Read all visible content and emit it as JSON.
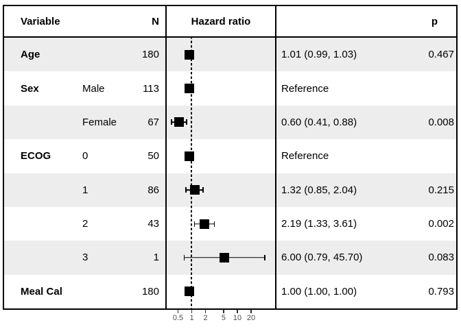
{
  "header": {
    "variable": "Variable",
    "n": "N",
    "hazard_ratio": "Hazard ratio",
    "p": "p"
  },
  "rows": [
    {
      "variable": "Age",
      "level": "",
      "n": "180",
      "estimate": "1.01 (0.99, 1.03)",
      "p": "0.467",
      "hr": 1.01,
      "lo": null,
      "hi": null,
      "shaded": true
    },
    {
      "variable": "Sex",
      "level": "Male",
      "n": "113",
      "estimate": "Reference",
      "p": "",
      "hr": 1.0,
      "lo": null,
      "hi": null,
      "shaded": false
    },
    {
      "variable": "",
      "level": "Female",
      "n": "67",
      "estimate": "0.60 (0.41, 0.88)",
      "p": "0.008",
      "hr": 0.6,
      "lo": 0.41,
      "hi": 0.88,
      "shaded": true
    },
    {
      "variable": "ECOG",
      "level": "0",
      "n": "50",
      "estimate": "Reference",
      "p": "",
      "hr": 1.0,
      "lo": null,
      "hi": null,
      "shaded": false
    },
    {
      "variable": "",
      "level": "1",
      "n": "86",
      "estimate": "1.32 (0.85, 2.04)",
      "p": "0.215",
      "hr": 1.32,
      "lo": 0.85,
      "hi": 2.04,
      "shaded": true
    },
    {
      "variable": "",
      "level": "2",
      "n": "43",
      "estimate": "2.19 (1.33, 3.61)",
      "p": "0.002",
      "hr": 2.19,
      "lo": 1.33,
      "hi": 3.61,
      "shaded": false
    },
    {
      "variable": "",
      "level": "3",
      "n": "1",
      "estimate": "6.00 (0.79, 45.70)",
      "p": "0.083",
      "hr": 6.0,
      "lo": 0.79,
      "hi": 45.7,
      "shaded": true
    },
    {
      "variable": "Meal Cal",
      "level": "",
      "n": "180",
      "estimate": "1.00 (1.00, 1.00)",
      "p": "0.793",
      "hr": 1.0,
      "lo": null,
      "hi": null,
      "shaded": false
    }
  ],
  "axis": {
    "scale": "log",
    "ticks": [
      0.5,
      1,
      2,
      5,
      10,
      20
    ],
    "tick_labels": [
      "0.5",
      "1",
      "2",
      "5",
      "10",
      "20"
    ],
    "reference": 1
  },
  "colors": {
    "band": "#ededed",
    "marker": "#000000",
    "border": "#000000",
    "axis_label": "#4d4d4d"
  },
  "chart_data": {
    "type": "scatter",
    "variant": "forest-plot",
    "title": "Hazard ratio",
    "x_scale": "log",
    "x_ticks": [
      0.5,
      1,
      2,
      5,
      10,
      20
    ],
    "x_range": [
      0.41,
      45.7
    ],
    "reference_line": 1,
    "legend": "none",
    "series": [
      {
        "variable": "Age",
        "level": null,
        "n": 180,
        "hr": 1.01,
        "ci_low": 0.99,
        "ci_high": 1.03,
        "p": 0.467,
        "reference": false
      },
      {
        "variable": "Sex",
        "level": "Male",
        "n": 113,
        "hr": 1.0,
        "ci_low": null,
        "ci_high": null,
        "p": null,
        "reference": true
      },
      {
        "variable": "Sex",
        "level": "Female",
        "n": 67,
        "hr": 0.6,
        "ci_low": 0.41,
        "ci_high": 0.88,
        "p": 0.008,
        "reference": false
      },
      {
        "variable": "ECOG",
        "level": "0",
        "n": 50,
        "hr": 1.0,
        "ci_low": null,
        "ci_high": null,
        "p": null,
        "reference": true
      },
      {
        "variable": "ECOG",
        "level": "1",
        "n": 86,
        "hr": 1.32,
        "ci_low": 0.85,
        "ci_high": 2.04,
        "p": 0.215,
        "reference": false
      },
      {
        "variable": "ECOG",
        "level": "2",
        "n": 43,
        "hr": 2.19,
        "ci_low": 1.33,
        "ci_high": 3.61,
        "p": 0.002,
        "reference": false
      },
      {
        "variable": "ECOG",
        "level": "3",
        "n": 1,
        "hr": 6.0,
        "ci_low": 0.79,
        "ci_high": 45.7,
        "p": 0.083,
        "reference": false
      },
      {
        "variable": "Meal Cal",
        "level": null,
        "n": 180,
        "hr": 1.0,
        "ci_low": 1.0,
        "ci_high": 1.0,
        "p": 0.793,
        "reference": false
      }
    ]
  }
}
